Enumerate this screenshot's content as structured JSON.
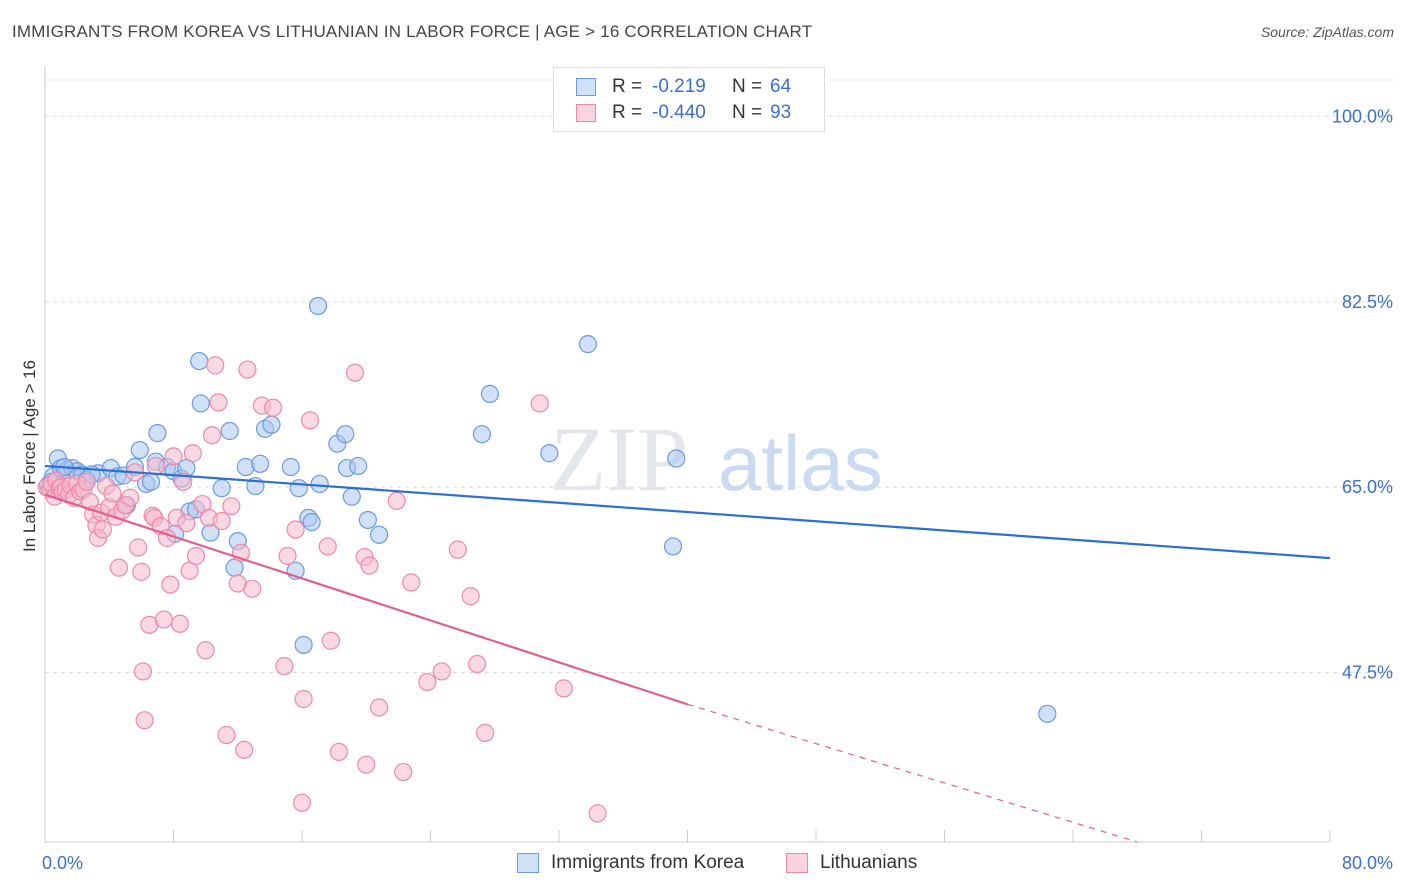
{
  "title": "IMMIGRANTS FROM KOREA VS LITHUANIAN IN LABOR FORCE | AGE > 16 CORRELATION CHART",
  "source": "Source: ZipAtlas.com",
  "watermark": {
    "zip": "ZIP",
    "atlas": "atlas"
  },
  "legend": {
    "rows": [
      {
        "r_label": "R =",
        "r_value": "-0.219",
        "n_label": "N =",
        "n_value": "64"
      },
      {
        "r_label": "R =",
        "r_value": "-0.440",
        "n_label": "N =",
        "n_value": "93"
      }
    ]
  },
  "colors": {
    "korea_fill": "#a9c6f0",
    "korea_stroke": "#6b9be0",
    "korea_line": "#2a6fd1",
    "lith_fill": "#f6b8cb",
    "lith_stroke": "#ec8aaa",
    "lith_line": "#e0608d",
    "axis_text": "#3a6fd0",
    "grid": "#dddddd"
  },
  "chart_data": {
    "type": "scatter",
    "title": "IMMIGRANTS FROM KOREA VS LITHUANIAN IN LABOR FORCE | AGE > 16 CORRELATION CHART",
    "xlabel": "",
    "ylabel": "In Labor Force | Age > 16",
    "xlim": [
      0,
      80
    ],
    "ylim": [
      31.5,
      104
    ],
    "x_tick_labels": [
      "0.0%",
      "80.0%"
    ],
    "y_ticks": [
      47.5,
      65.0,
      82.5,
      100.0
    ],
    "y_tick_labels": [
      "47.5%",
      "65.0%",
      "82.5%",
      "100.0%"
    ],
    "grid": true,
    "legend_position": "top-center",
    "series": [
      {
        "name": "Immigrants from Korea",
        "r": -0.219,
        "n": 64,
        "trend": {
          "x": [
            0,
            80
          ],
          "y": [
            67.0,
            58.3
          ],
          "style": "solid"
        },
        "points": [
          [
            0.2,
            65.2
          ],
          [
            0.5,
            66.0
          ],
          [
            0.8,
            67.7
          ],
          [
            1.0,
            66.8
          ],
          [
            1.4,
            66.6
          ],
          [
            1.7,
            66.8
          ],
          [
            2.0,
            66.5
          ],
          [
            2.3,
            66.2
          ],
          [
            2.6,
            65.7
          ],
          [
            3.3,
            66.3
          ],
          [
            4.1,
            66.8
          ],
          [
            4.5,
            66.0
          ],
          [
            4.9,
            66.1
          ],
          [
            5.1,
            63.3
          ],
          [
            5.6,
            66.9
          ],
          [
            5.9,
            68.5
          ],
          [
            6.3,
            65.3
          ],
          [
            6.6,
            65.5
          ],
          [
            6.9,
            67.4
          ],
          [
            7.0,
            70.1
          ],
          [
            7.6,
            66.9
          ],
          [
            8.0,
            66.5
          ],
          [
            8.1,
            60.6
          ],
          [
            8.5,
            65.8
          ],
          [
            8.8,
            66.8
          ],
          [
            9.0,
            62.7
          ],
          [
            9.4,
            62.9
          ],
          [
            9.6,
            76.9
          ],
          [
            9.7,
            72.9
          ],
          [
            10.3,
            60.7
          ],
          [
            11.0,
            64.9
          ],
          [
            11.5,
            70.3
          ],
          [
            11.8,
            57.4
          ],
          [
            12.0,
            59.9
          ],
          [
            12.5,
            66.9
          ],
          [
            13.1,
            65.1
          ],
          [
            13.4,
            67.2
          ],
          [
            13.7,
            70.5
          ],
          [
            14.1,
            70.9
          ],
          [
            15.3,
            66.9
          ],
          [
            15.6,
            57.1
          ],
          [
            15.8,
            64.9
          ],
          [
            16.4,
            62.1
          ],
          [
            16.6,
            61.7
          ],
          [
            17.0,
            82.1
          ],
          [
            17.1,
            65.3
          ],
          [
            18.2,
            69.1
          ],
          [
            18.7,
            70.0
          ],
          [
            18.8,
            66.8
          ],
          [
            19.1,
            64.1
          ],
          [
            19.5,
            67.0
          ],
          [
            20.1,
            61.9
          ],
          [
            20.8,
            60.5
          ],
          [
            16.1,
            50.1
          ],
          [
            27.2,
            70.0
          ],
          [
            27.7,
            73.8
          ],
          [
            31.4,
            68.2
          ],
          [
            33.8,
            78.5
          ],
          [
            39.3,
            67.7
          ],
          [
            39.1,
            59.4
          ],
          [
            62.4,
            43.6
          ],
          [
            0.4,
            65.5
          ],
          [
            1.2,
            66.9
          ],
          [
            2.9,
            66.2
          ]
        ]
      },
      {
        "name": "Lithuanians",
        "r": -0.44,
        "n": 93,
        "trend": {
          "x": [
            0,
            40
          ],
          "y": [
            64.3,
            44.5
          ],
          "dashed_to": [
            68,
            31.5
          ],
          "style": "solid-then-dashed"
        },
        "points": [
          [
            0.1,
            65.0
          ],
          [
            0.3,
            64.8
          ],
          [
            0.4,
            65.3
          ],
          [
            0.6,
            64.1
          ],
          [
            0.7,
            65.6
          ],
          [
            0.9,
            64.9
          ],
          [
            1.0,
            65.0
          ],
          [
            1.1,
            64.5
          ],
          [
            1.3,
            64.7
          ],
          [
            1.5,
            64.3
          ],
          [
            1.6,
            65.2
          ],
          [
            1.8,
            64.0
          ],
          [
            2.0,
            65.3
          ],
          [
            2.2,
            64.6
          ],
          [
            2.4,
            64.8
          ],
          [
            2.6,
            65.5
          ],
          [
            2.8,
            63.6
          ],
          [
            3.0,
            62.4
          ],
          [
            3.2,
            61.4
          ],
          [
            3.3,
            60.2
          ],
          [
            3.5,
            62.6
          ],
          [
            3.6,
            61.0
          ],
          [
            3.8,
            65.1
          ],
          [
            4.0,
            63.1
          ],
          [
            4.2,
            64.4
          ],
          [
            4.4,
            62.2
          ],
          [
            4.6,
            57.4
          ],
          [
            4.8,
            62.8
          ],
          [
            5.0,
            63.3
          ],
          [
            5.3,
            64.0
          ],
          [
            5.6,
            66.4
          ],
          [
            5.8,
            59.3
          ],
          [
            6.0,
            57.0
          ],
          [
            6.1,
            47.6
          ],
          [
            6.2,
            43.0
          ],
          [
            6.5,
            52.0
          ],
          [
            6.7,
            62.3
          ],
          [
            6.8,
            62.1
          ],
          [
            6.9,
            67.0
          ],
          [
            7.2,
            61.3
          ],
          [
            7.4,
            52.5
          ],
          [
            7.6,
            60.2
          ],
          [
            7.8,
            55.8
          ],
          [
            8.0,
            67.9
          ],
          [
            8.2,
            62.1
          ],
          [
            8.4,
            52.1
          ],
          [
            8.6,
            65.5
          ],
          [
            8.8,
            61.6
          ],
          [
            9.0,
            57.1
          ],
          [
            9.2,
            68.2
          ],
          [
            9.4,
            58.5
          ],
          [
            9.8,
            63.4
          ],
          [
            10.0,
            49.6
          ],
          [
            10.2,
            62.1
          ],
          [
            10.4,
            69.9
          ],
          [
            10.6,
            76.5
          ],
          [
            10.8,
            73.0
          ],
          [
            11.0,
            61.8
          ],
          [
            11.3,
            41.6
          ],
          [
            11.6,
            63.2
          ],
          [
            12.0,
            55.9
          ],
          [
            12.2,
            58.8
          ],
          [
            12.4,
            40.2
          ],
          [
            12.6,
            76.1
          ],
          [
            12.9,
            55.4
          ],
          [
            13.5,
            72.7
          ],
          [
            14.2,
            72.5
          ],
          [
            14.9,
            48.1
          ],
          [
            15.1,
            58.5
          ],
          [
            15.6,
            61.0
          ],
          [
            16.0,
            35.2
          ],
          [
            16.1,
            45.0
          ],
          [
            16.5,
            71.3
          ],
          [
            17.6,
            59.4
          ],
          [
            17.8,
            50.5
          ],
          [
            18.3,
            40.0
          ],
          [
            19.3,
            75.8
          ],
          [
            19.9,
            58.4
          ],
          [
            20.2,
            57.6
          ],
          [
            20.8,
            44.2
          ],
          [
            21.9,
            63.7
          ],
          [
            22.3,
            38.1
          ],
          [
            22.8,
            56.0
          ],
          [
            23.8,
            46.6
          ],
          [
            24.7,
            47.6
          ],
          [
            25.7,
            59.1
          ],
          [
            26.5,
            54.7
          ],
          [
            26.9,
            48.3
          ],
          [
            27.4,
            41.8
          ],
          [
            30.8,
            72.9
          ],
          [
            32.3,
            46.0
          ],
          [
            34.4,
            34.2
          ],
          [
            20.0,
            38.8
          ]
        ]
      }
    ]
  },
  "bottom_legend": [
    {
      "label": "Immigrants from Korea"
    },
    {
      "label": "Lithuanians"
    }
  ]
}
